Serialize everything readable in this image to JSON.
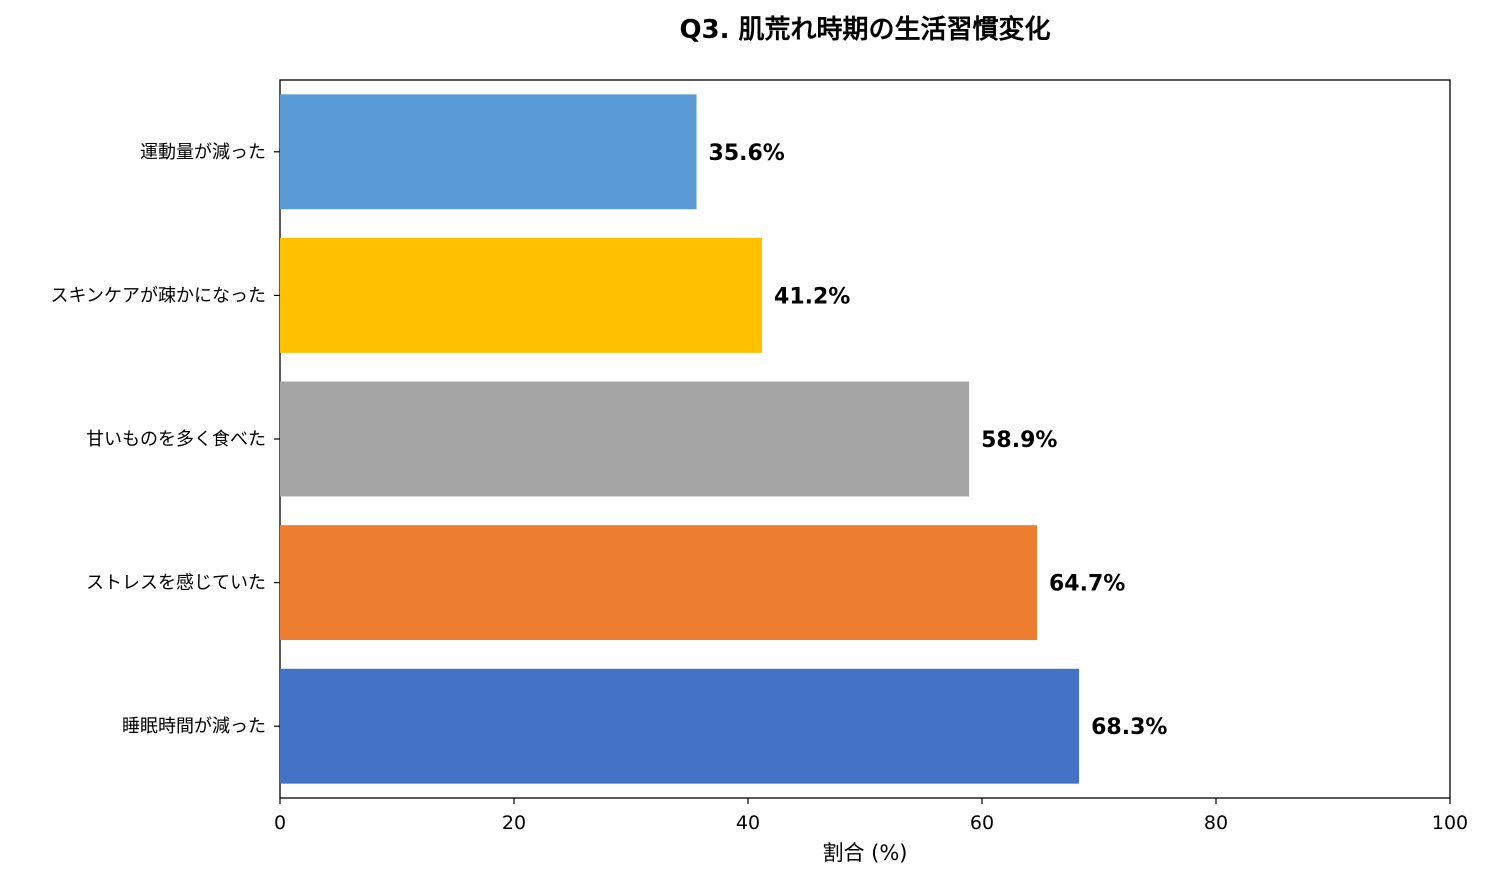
{
  "chart_data": {
    "type": "bar",
    "orientation": "horizontal",
    "title": "Q3. 肌荒れ時期の生活習慣変化",
    "xlabel": "割合 (%)",
    "ylabel": "",
    "xlim": [
      0,
      100
    ],
    "xticks": [
      "0",
      "20",
      "40",
      "60",
      "80",
      "100"
    ],
    "grid": false,
    "categories": [
      "運動量が減った",
      "スキンケアが疎かになった",
      "甘いものを多く食べた",
      "ストレスを感じていた",
      "睡眠時間が減った"
    ],
    "values": [
      35.6,
      41.2,
      58.9,
      64.7,
      68.3
    ],
    "value_labels": [
      "35.6%",
      "41.2%",
      "58.9%",
      "64.7%",
      "68.3%"
    ],
    "colors": [
      "#5b9bd5",
      "#ffc000",
      "#a5a5a5",
      "#ed7d31",
      "#4472c4"
    ]
  }
}
